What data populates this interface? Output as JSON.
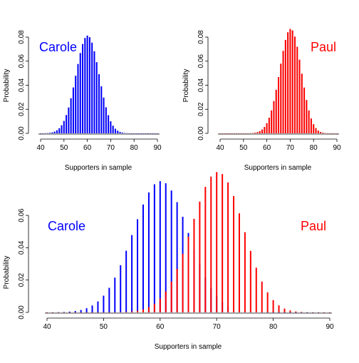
{
  "colors": {
    "carole": "#0000ff",
    "paul": "#ff0000",
    "reference": "#b3b3b3",
    "axis": "#000000"
  },
  "chart_data": [
    {
      "type": "bar",
      "panel": "carole",
      "label": "Carole",
      "label_color": "#0000ff",
      "xlabel": "Supporters in sample",
      "ylabel": "Probability",
      "xlim": [
        40,
        90
      ],
      "ylim": [
        0,
        0.08
      ],
      "x_ticks": [
        "40",
        "50",
        "60",
        "70",
        "80",
        "90"
      ],
      "y_ticks": [
        "0.00",
        "0.02",
        "0.04",
        "0.06",
        "0.08"
      ],
      "series": [
        {
          "color": "#b3b3b3",
          "distribution": "binomial",
          "n": 100,
          "p": 0.6,
          "x_range": [
            40,
            90
          ]
        },
        {
          "color": "#0000ff",
          "distribution": "binomial",
          "n": 100,
          "p": 0.6,
          "x_range": [
            40,
            90
          ]
        }
      ]
    },
    {
      "type": "bar",
      "panel": "paul",
      "label": "Paul",
      "label_color": "#ff0000",
      "xlabel": "Supporters in sample",
      "ylabel": "Probability",
      "xlim": [
        40,
        90
      ],
      "ylim": [
        0,
        0.08
      ],
      "x_ticks": [
        "40",
        "50",
        "60",
        "70",
        "80",
        "90"
      ],
      "y_ticks": [
        "0.00",
        "0.02",
        "0.04",
        "0.06",
        "0.08"
      ],
      "series": [
        {
          "color": "#b3b3b3",
          "distribution": "binomial",
          "n": 100,
          "p": 0.7,
          "x_range": [
            40,
            90
          ]
        },
        {
          "color": "#ff0000",
          "distribution": "binomial",
          "n": 100,
          "p": 0.7,
          "x_range": [
            40,
            90
          ]
        }
      ]
    },
    {
      "type": "bar",
      "panel": "combined",
      "labels": [
        {
          "text": "Carole",
          "color": "#0000ff"
        },
        {
          "text": "Paul",
          "color": "#ff0000"
        }
      ],
      "xlabel": "Supporters in sample",
      "ylabel": "Probability",
      "xlim": [
        40,
        90
      ],
      "ylim": [
        0,
        0.06
      ],
      "x_ticks": [
        "40",
        "50",
        "60",
        "70",
        "80",
        "90"
      ],
      "y_ticks": [
        "0.00",
        "0.02",
        "0.04",
        "0.06"
      ],
      "series": [
        {
          "color": "#0000ff",
          "distribution": "binomial",
          "n": 100,
          "p": 0.6,
          "x_range": [
            40,
            90
          ]
        },
        {
          "color": "#ff0000",
          "distribution": "binomial",
          "n": 100,
          "p": 0.7,
          "x_range": [
            40,
            90
          ]
        }
      ]
    }
  ]
}
